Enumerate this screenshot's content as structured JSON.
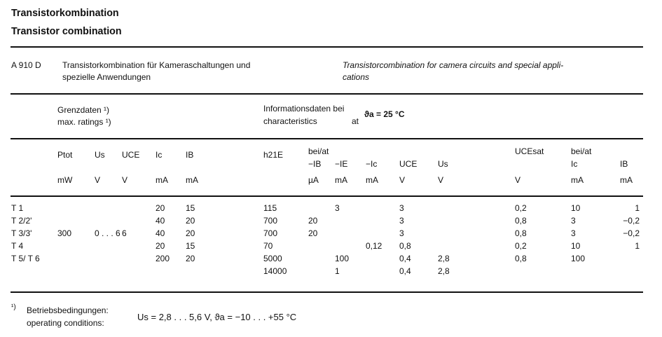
{
  "title_de": "Transistorkombination",
  "title_en": "Transistor combination",
  "part": {
    "code": "A 910 D",
    "desc_de_1": "Transistorkombination für Kameraschaltungen und",
    "desc_de_2": "spezielle Anwendungen",
    "desc_en_1": "Transistorcombination for camera circuits and special appli-",
    "desc_en_2": "cations"
  },
  "limits": {
    "title_1": "Grenzdaten ¹)",
    "title_2": "max. ratings ¹)"
  },
  "chars": {
    "title_1": "Informationsdaten bei",
    "title_2": "characteristics",
    "at": "at",
    "cond": "ϑa = 25 °C"
  },
  "headers": {
    "ptot": "Ptot",
    "us": "Us",
    "uce": "UCE",
    "ic": "Ic",
    "ib": "IB",
    "h21e": "h21E",
    "beiat1": "bei/at",
    "mib": "−IB",
    "mie": "−IE",
    "mic": "−Ic",
    "uce2": "UCE",
    "us2": "Us",
    "ucesat": "UCEsat",
    "beiat2": "bei/at",
    "ic2": "Ic",
    "ib2": "IB"
  },
  "units": {
    "ptot": "mW",
    "us": "V",
    "uce": "V",
    "ic": "mA",
    "ib": "mA",
    "mib": "µA",
    "mie": "mA",
    "mic": "mA",
    "uce2": "V",
    "us2": "V",
    "ucesat": "V",
    "ic2": "mA",
    "ib2": "mA"
  },
  "rows": [
    {
      "name": "T 1",
      "ptot": "",
      "us": "",
      "uce": "",
      "ic": "20",
      "ib": "15",
      "h21e": "115",
      "mib": "",
      "mie": "3",
      "mic": "",
      "uce2": "3",
      "us2": "",
      "ucesat": "0,2",
      "ic2": "10",
      "ib2": "1"
    },
    {
      "name": "T 2/2'",
      "ptot": "",
      "us": "",
      "uce": "",
      "ic": "40",
      "ib": "20",
      "h21e": "700",
      "mib": "20",
      "mie": "",
      "mic": "",
      "uce2": "3",
      "us2": "",
      "ucesat": "0,8",
      "ic2": "3",
      "ib2": "−0,2"
    },
    {
      "name": "T 3/3'",
      "ptot": "300",
      "us": "0 . . . 6",
      "uce": "6",
      "ic": "40",
      "ib": "20",
      "h21e": "700",
      "mib": "20",
      "mie": "",
      "mic": "",
      "uce2": "3",
      "us2": "",
      "ucesat": "0,8",
      "ic2": "3",
      "ib2": "−0,2"
    },
    {
      "name": "T 4",
      "ptot": "",
      "us": "",
      "uce": "",
      "ic": "20",
      "ib": "15",
      "h21e": "70",
      "mib": "",
      "mie": "",
      "mic": "0,12",
      "uce2": "0,8",
      "us2": "",
      "ucesat": "0,2",
      "ic2": "10",
      "ib2": "1"
    },
    {
      "name": "T 5/ T 6",
      "ptot": "",
      "us": "",
      "uce": "",
      "ic": "200",
      "ib": "20",
      "h21e": "5000",
      "mib": "",
      "mie": "100",
      "mic": "",
      "uce2": "0,4",
      "us2": "2,8",
      "ucesat": "0,8",
      "ic2": "100",
      "ib2": ""
    },
    {
      "name": "",
      "ptot": "",
      "us": "",
      "uce": "",
      "ic": "",
      "ib": "",
      "h21e": "14000",
      "mib": "",
      "mie": "1",
      "mic": "",
      "uce2": "0,4",
      "us2": "2,8",
      "ucesat": "",
      "ic2": "",
      "ib2": ""
    }
  ],
  "footnote": {
    "mark": "¹)",
    "label_de": "Betriebsbedingungen:",
    "label_en": "operating conditions:",
    "text": "Us = 2,8 . . . 5,6 V,  ϑa = −10 . . . +55 °C"
  }
}
